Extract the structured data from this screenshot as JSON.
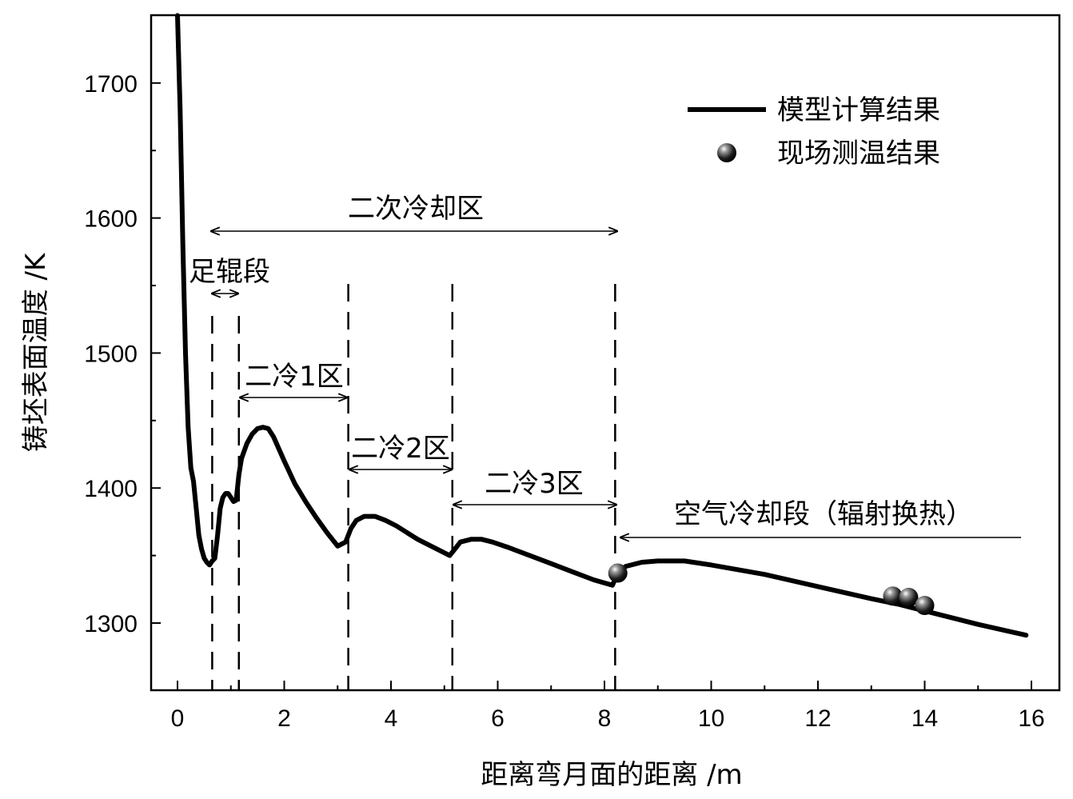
{
  "chart_data": {
    "type": "line",
    "xlabel": "距离弯月面的距离 /m",
    "ylabel": "铸坯表面温度 /K",
    "xlim": [
      -0.5,
      16.3
    ],
    "ylim": [
      1250,
      1750
    ],
    "xticks": [
      0,
      2,
      4,
      6,
      8,
      10,
      12,
      14,
      16
    ],
    "yticks": [
      1300,
      1400,
      1500,
      1600,
      1700
    ],
    "grid": false,
    "legend_position": "top-right",
    "legend": [
      {
        "label": "模型计算结果",
        "marker": "line"
      },
      {
        "label": "现场测温结果",
        "marker": "sphere"
      }
    ],
    "series": [
      {
        "name": "模型计算结果",
        "style": "line",
        "color": "#000000",
        "x": [
          0.0,
          0.05,
          0.1,
          0.15,
          0.2,
          0.25,
          0.3,
          0.35,
          0.4,
          0.45,
          0.5,
          0.55,
          0.6,
          0.65,
          0.7,
          0.75,
          0.8,
          0.85,
          0.9,
          0.95,
          1.0,
          1.05,
          1.1,
          1.15,
          1.2,
          1.3,
          1.4,
          1.5,
          1.6,
          1.7,
          1.8,
          2.0,
          2.2,
          2.4,
          2.6,
          2.8,
          3.0,
          3.15,
          3.25,
          3.35,
          3.5,
          3.7,
          3.9,
          4.1,
          4.3,
          4.5,
          4.7,
          4.9,
          5.1,
          5.2,
          5.3,
          5.5,
          5.7,
          5.9,
          6.2,
          6.6,
          7.0,
          7.4,
          7.8,
          8.15,
          8.25,
          8.4,
          8.7,
          9.0,
          9.5,
          10.0,
          11.0,
          12.0,
          13.0,
          13.5,
          14.0,
          15.0,
          15.9
        ],
        "y": [
          1750,
          1680,
          1580,
          1500,
          1445,
          1415,
          1405,
          1385,
          1365,
          1355,
          1348,
          1345,
          1343,
          1346,
          1348,
          1365,
          1385,
          1393,
          1396,
          1396,
          1393,
          1390,
          1391,
          1410,
          1422,
          1433,
          1440,
          1444,
          1445,
          1444,
          1438,
          1420,
          1403,
          1390,
          1378,
          1367,
          1357,
          1360,
          1370,
          1376,
          1379,
          1379,
          1376,
          1372,
          1367,
          1362,
          1358,
          1354,
          1350,
          1355,
          1360,
          1362,
          1362,
          1360,
          1356,
          1350,
          1344,
          1338,
          1332,
          1328,
          1337,
          1342,
          1345,
          1346,
          1346,
          1343,
          1336,
          1327,
          1318,
          1314,
          1309,
          1299,
          1291
        ]
      },
      {
        "name": "现场测温结果",
        "style": "scatter",
        "color": "#111111",
        "x": [
          8.25,
          13.4,
          13.7,
          14.0
        ],
        "y": [
          1337,
          1320,
          1319,
          1313
        ]
      }
    ],
    "zone_boundaries_x": [
      0.65,
      1.15,
      3.2,
      5.15,
      8.2
    ],
    "annotations": {
      "secondary_cooling": "二次冷却区",
      "foot_roll": "足辊段",
      "zone1": "二冷1区",
      "zone2": "二冷2区",
      "zone3": "二冷3区",
      "air_cooling": "空气冷却段（辐射换热）"
    }
  }
}
